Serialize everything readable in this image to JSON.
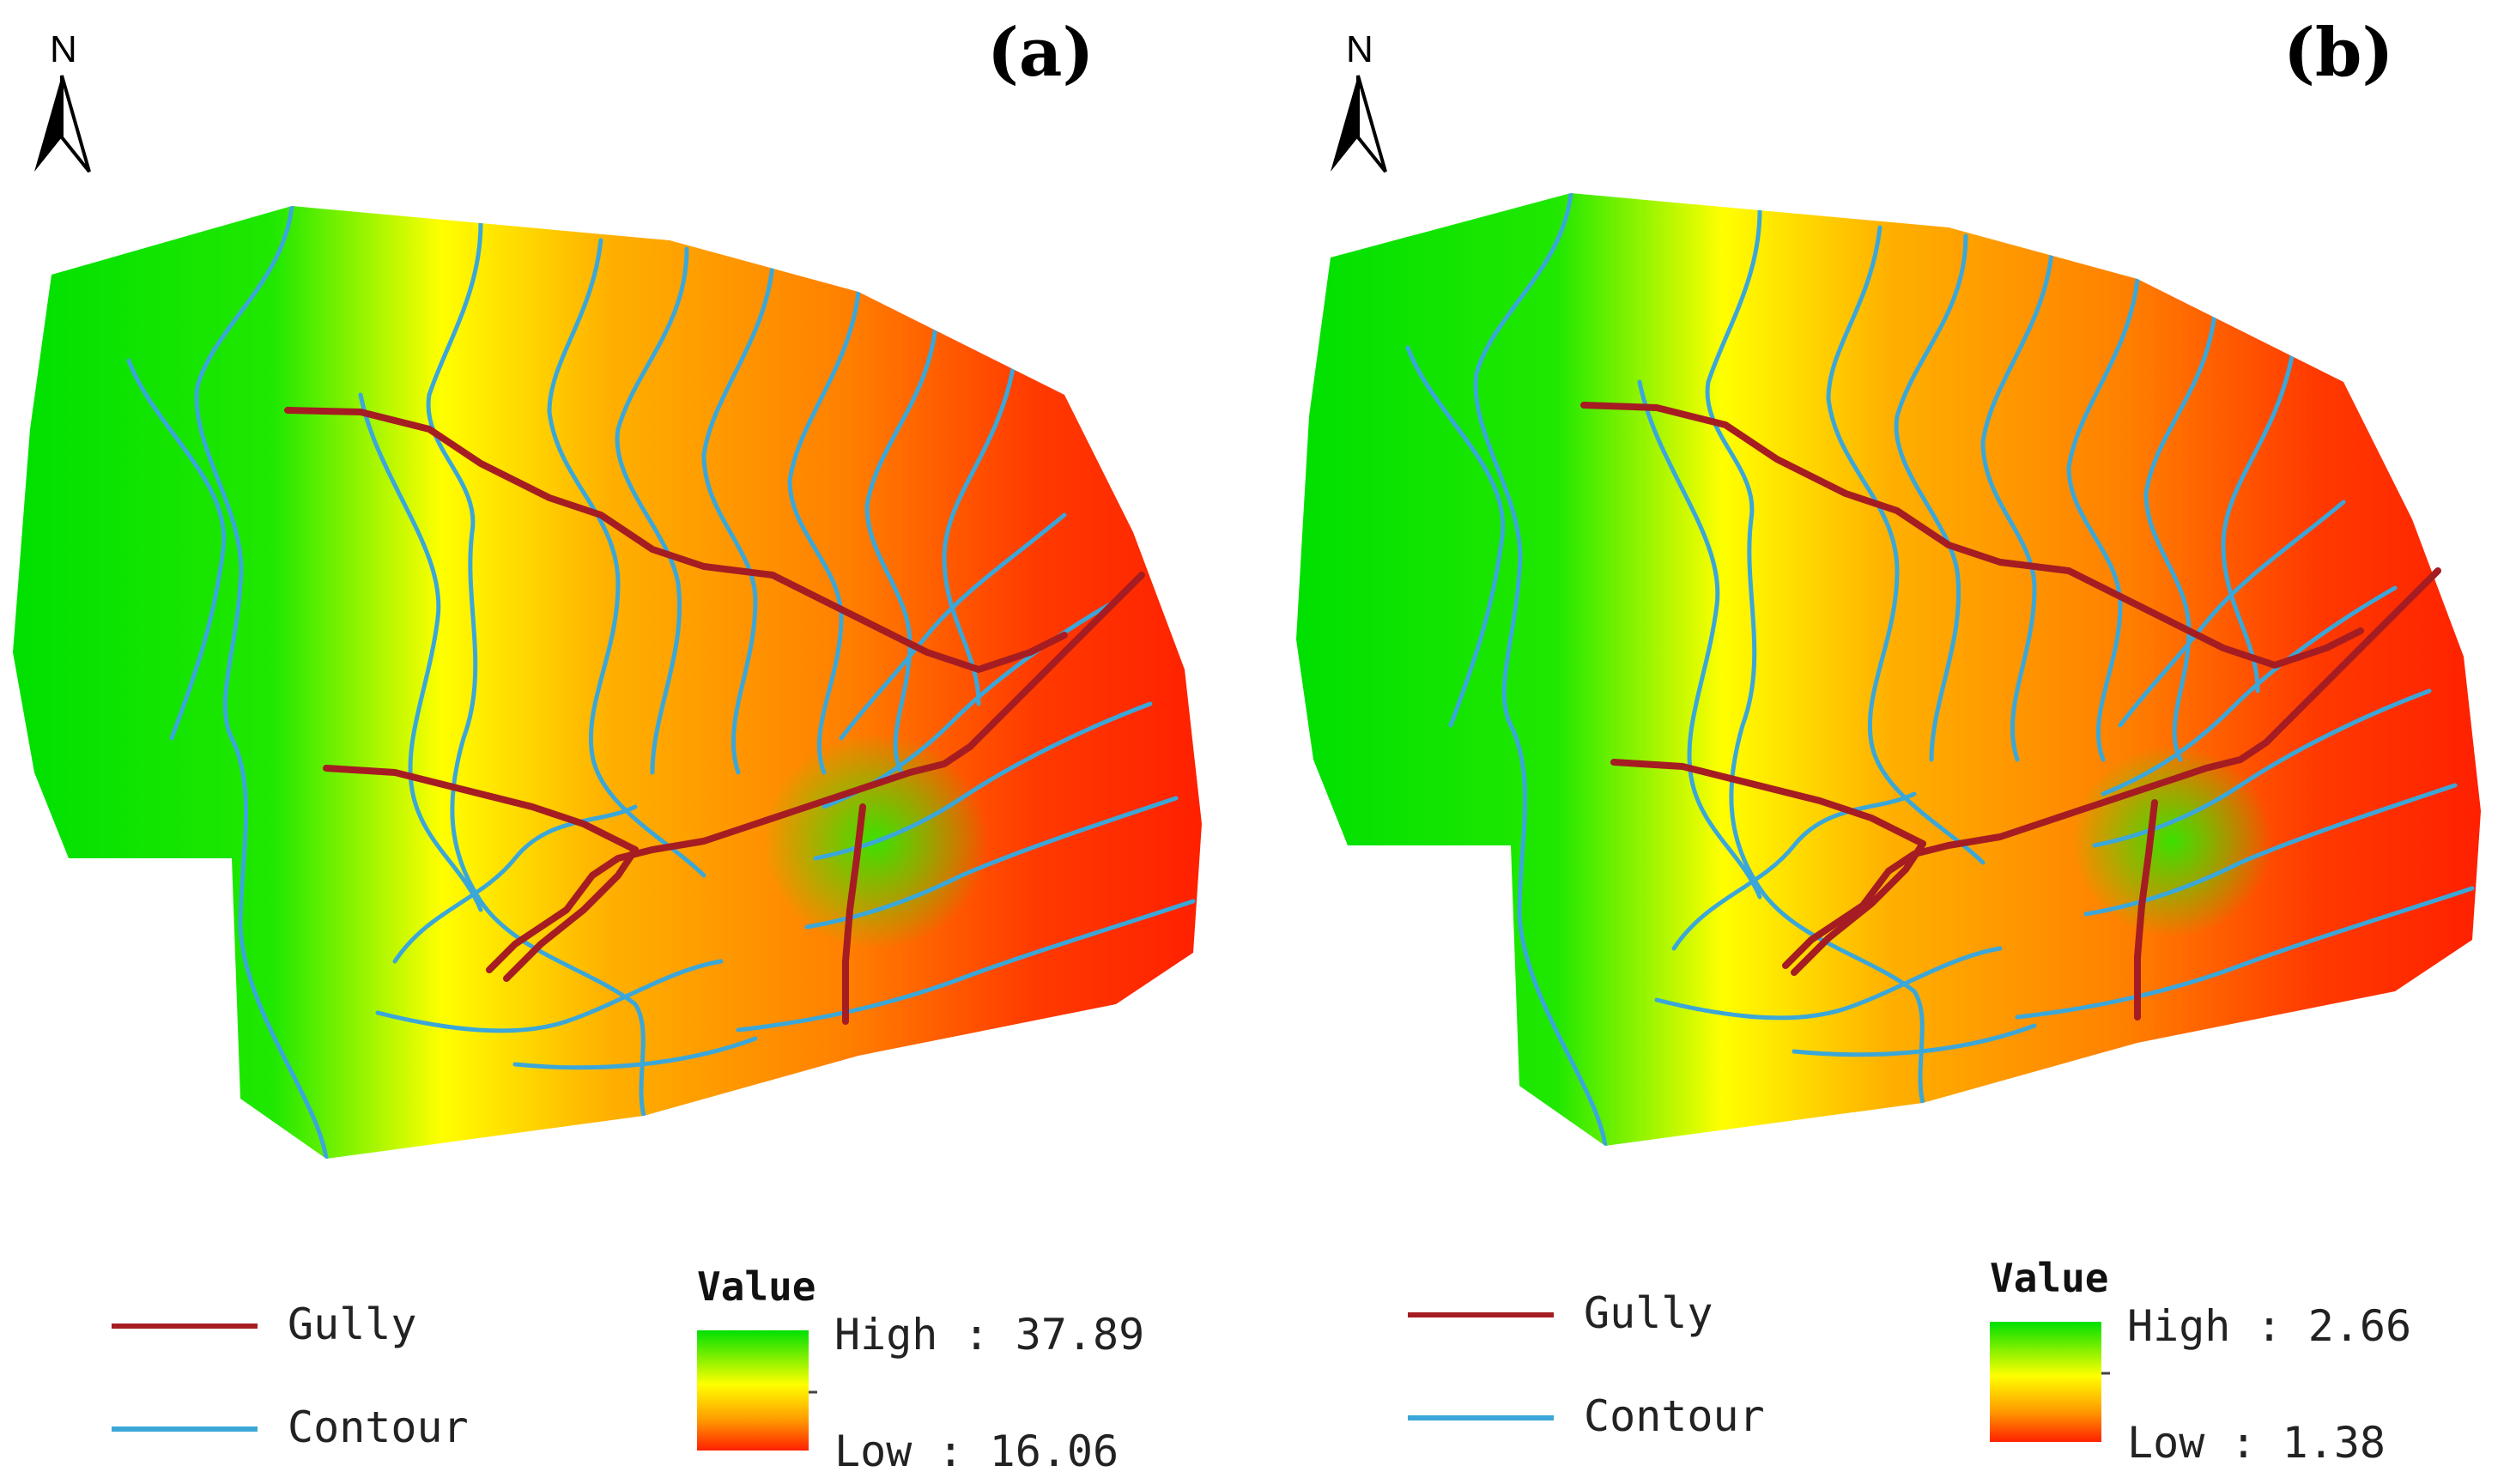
{
  "panels": [
    {
      "label": "(a)",
      "north": "N",
      "legend": {
        "gully": "Gully",
        "contour": "Contour",
        "value_title": "Value",
        "high": "High : 37.89",
        "low": "Low : 16.06"
      }
    },
    {
      "label": "(b)",
      "north": "N",
      "legend": {
        "gully": "Gully",
        "contour": "Contour",
        "value_title": "Value",
        "high": "High : 2.66",
        "low": "Low : 1.38"
      }
    }
  ],
  "colors": {
    "gully": "#a51d22",
    "contour": "#3ba7d9",
    "ramp_high": "#00e000",
    "ramp_mid": "#ffff00",
    "ramp_orange": "#ff9900",
    "ramp_low": "#ff2000"
  }
}
